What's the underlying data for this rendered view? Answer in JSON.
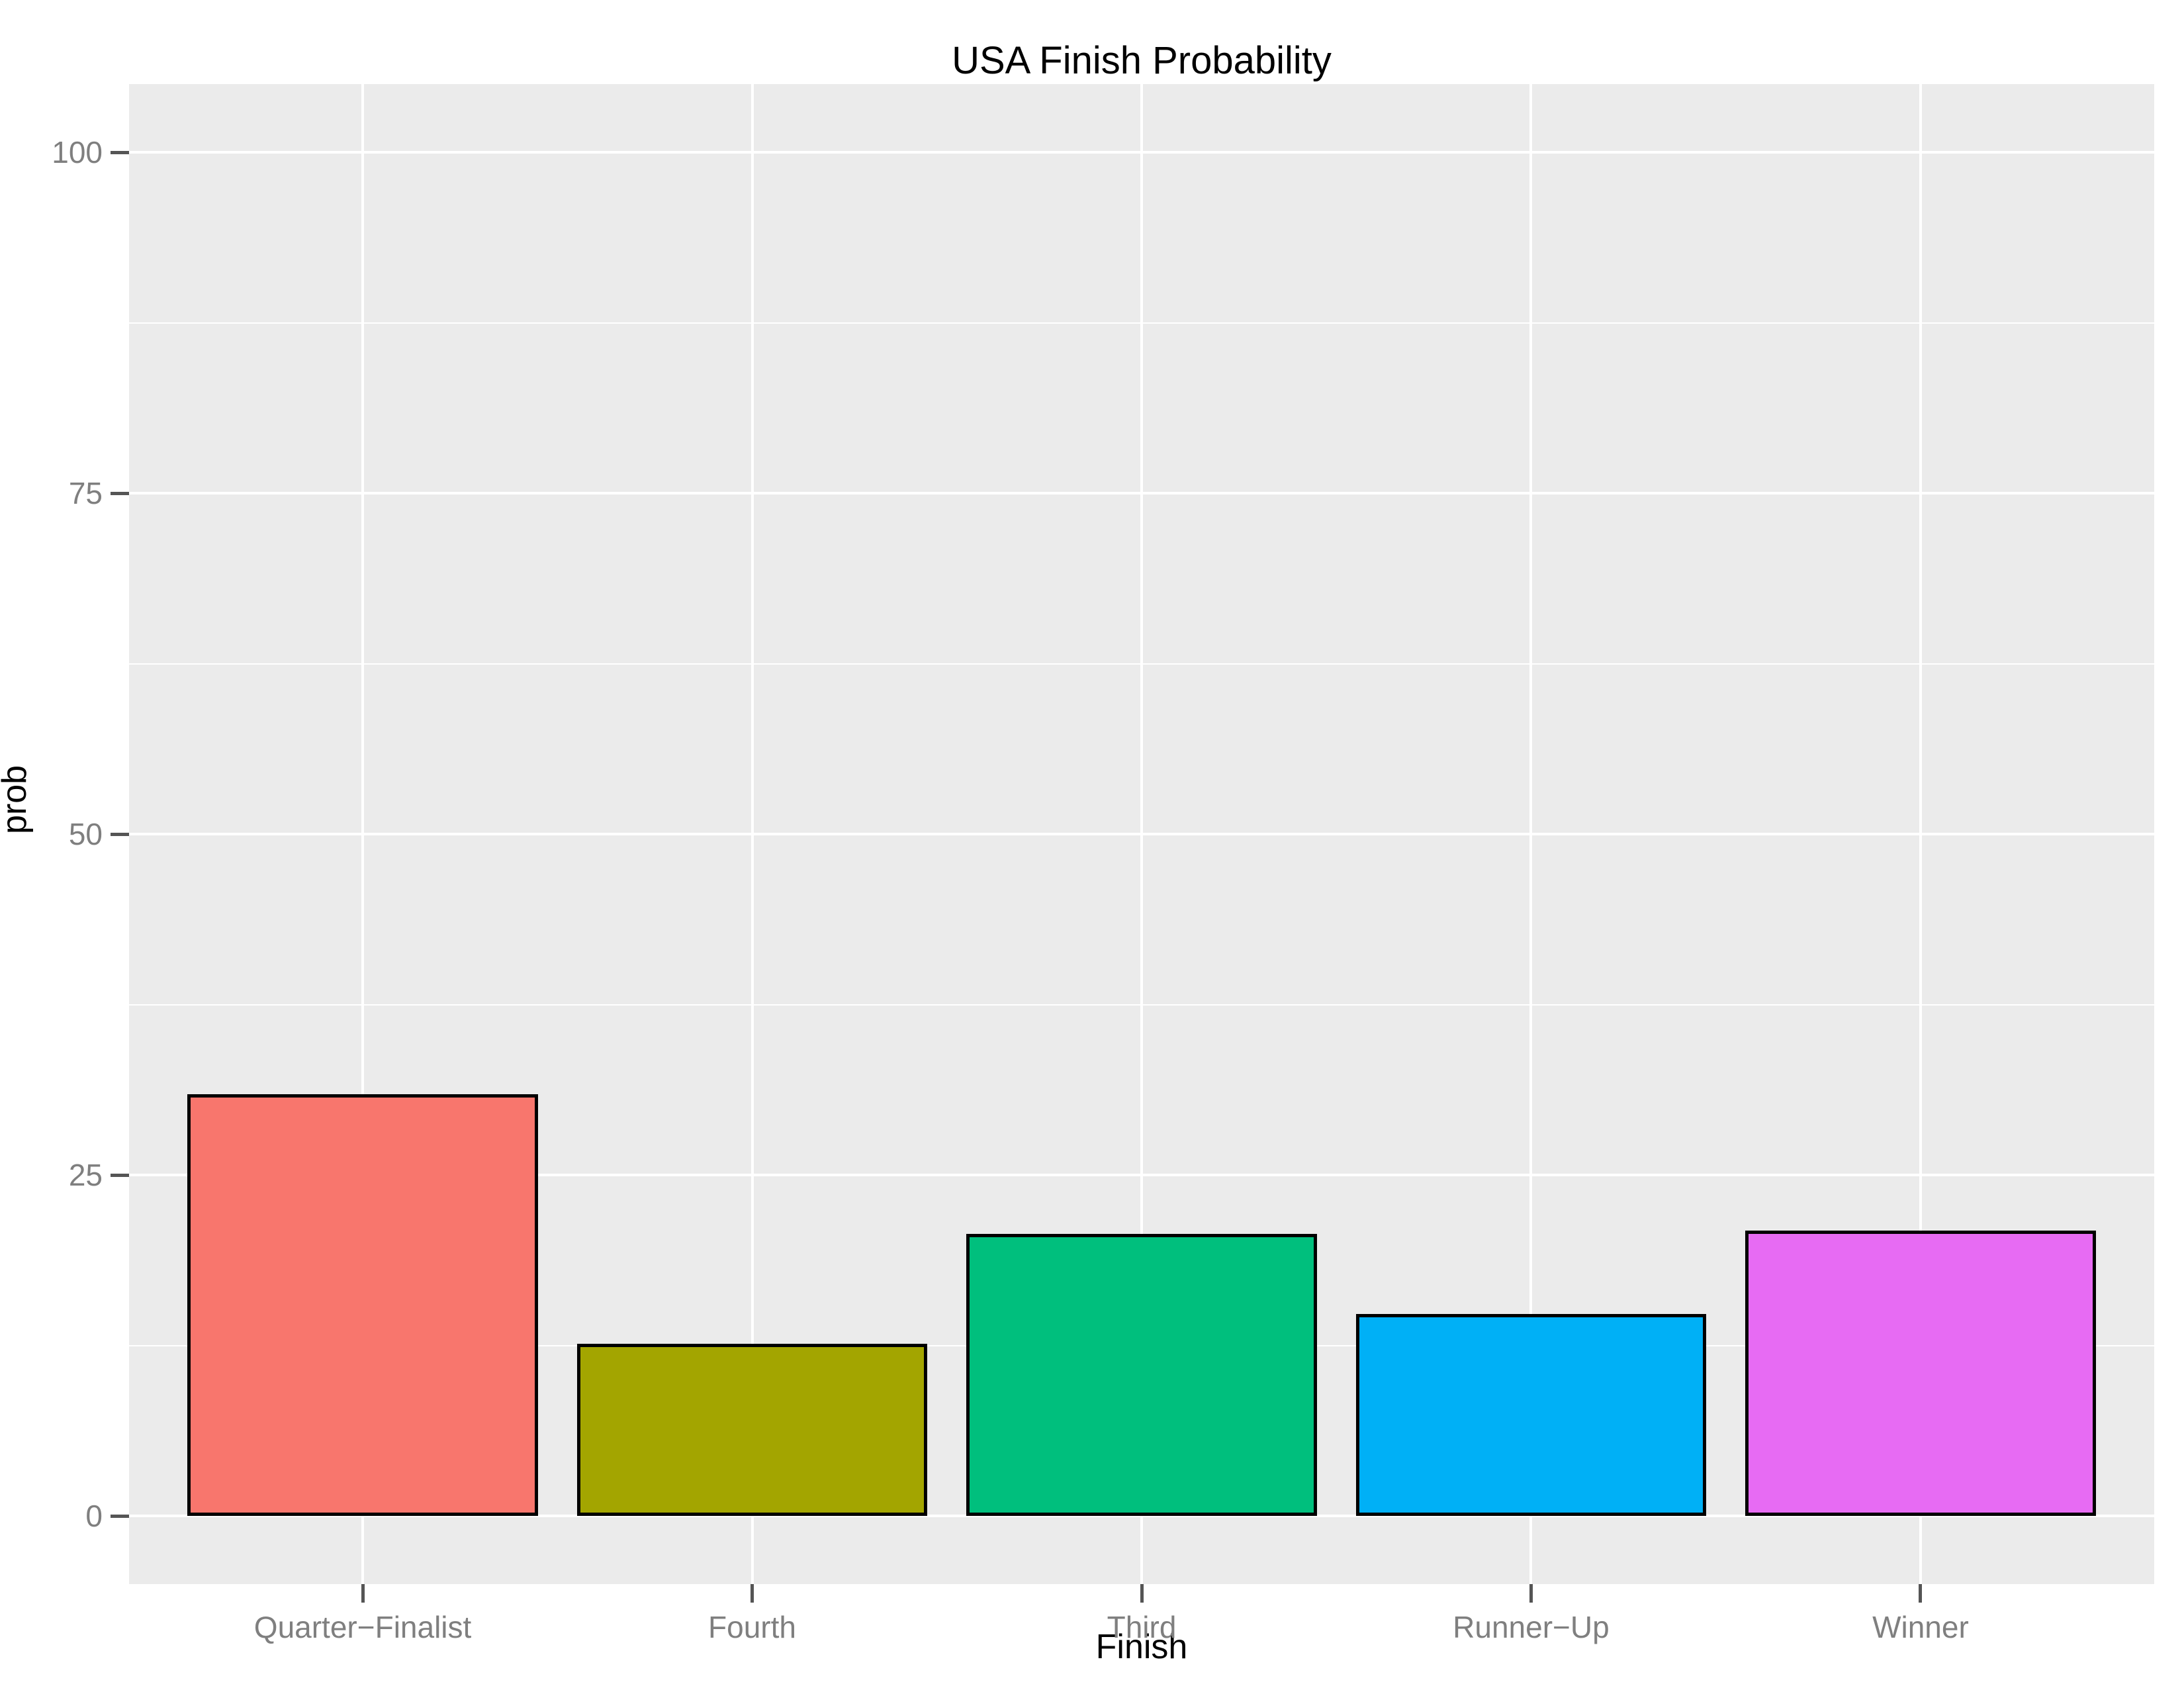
{
  "chart_data": {
    "type": "bar",
    "title": "USA Finish Probability",
    "xlabel": "Finish",
    "ylabel": "prob",
    "categories": [
      "Quarter−Finalist",
      "Fourth",
      "Third",
      "Runner−Up",
      "Winner"
    ],
    "values": [
      30.9,
      12.6,
      20.7,
      14.8,
      20.9
    ],
    "bar_colors": [
      "#F8766D",
      "#A3A500",
      "#00BF7D",
      "#00B0F6",
      "#E76BF3"
    ],
    "bar_outline_color": "#000000",
    "y_ticks": [
      0,
      25,
      50,
      75,
      100
    ],
    "y_tick_labels": [
      "0",
      "25",
      "50",
      "75",
      "100"
    ],
    "ylim": [
      0,
      100
    ],
    "legend": "none",
    "grid": "white major and minor horizontal gridlines, white vertical gridlines at category centers, on grey panel",
    "panel_background": "#EBEBEB",
    "gridline_color": "#FFFFFF",
    "tick_text_color": "#7F7F7F",
    "tick_mark_color": "#555555",
    "title_color": "#000000"
  }
}
